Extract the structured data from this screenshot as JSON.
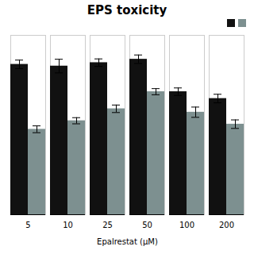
{
  "chart_data": {
    "type": "bar",
    "title": "EPS toxicity",
    "xlabel": "Epalrestat (μM)",
    "categories": [
      "5",
      "10",
      "25",
      "50",
      "100",
      "200"
    ],
    "series": [
      {
        "color": "#111111",
        "values": [
          0.88,
          0.87,
          0.89,
          0.91,
          0.72,
          0.68
        ],
        "errors": [
          0.025,
          0.04,
          0.022,
          0.025,
          0.022,
          0.025
        ]
      },
      {
        "color": "#7d9090",
        "values": [
          0.5,
          0.55,
          0.62,
          0.72,
          0.6,
          0.53
        ],
        "errors": [
          0.02,
          0.018,
          0.022,
          0.018,
          0.03,
          0.025
        ]
      }
    ],
    "ylim": [
      0,
      1.05
    ],
    "grid": false,
    "legend": "upper right",
    "tick_labels": "x"
  }
}
